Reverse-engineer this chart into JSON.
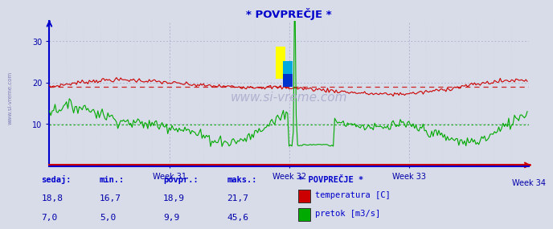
{
  "title": "* POVPREČJE *",
  "bg_color": "#d8dce8",
  "plot_bg_color": "#d8dce8",
  "grid_color_dot": "#aaaacc",
  "axis_color": "#0000cc",
  "tick_color": "#0000aa",
  "x_axis_color": "#cc0000",
  "temp_color": "#cc0000",
  "flow_color": "#00aa00",
  "temp_avg": 18.9,
  "flow_avg": 9.9,
  "temp_min": 16.7,
  "temp_max": 21.7,
  "flow_min": 5.0,
  "flow_max": 45.6,
  "temp_sedaj": 18.8,
  "flow_sedaj": 7.0,
  "ylim_min": 0,
  "ylim_max": 35,
  "yticks": [
    10,
    20,
    30
  ],
  "week_labels": [
    "Week 31",
    "Week 32",
    "Week 33",
    "Week 34"
  ],
  "n_points": 336,
  "watermark": "www.si-vreme.com",
  "sidebar_text": "www.si-vreme.com",
  "legend_title": "* POVPREČJE *",
  "legend_items": [
    {
      "label": "temperatura [C]",
      "color": "#cc0000"
    },
    {
      "label": "pretok [m3/s]",
      "color": "#00aa00"
    }
  ],
  "table_headers": [
    "sedaj:",
    "min.:",
    "povpr.:",
    "maks.:"
  ],
  "table_row1": [
    "18,8",
    "16,7",
    "18,9",
    "21,7"
  ],
  "table_row2": [
    "7,0",
    "5,0",
    "9,9",
    "45,6"
  ],
  "spike_idx": 172,
  "spike_value": 45.6
}
